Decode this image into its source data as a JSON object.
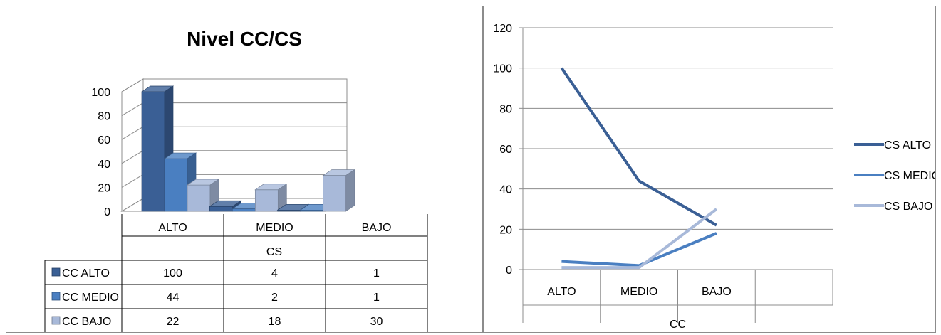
{
  "chart_data": [
    {
      "type": "bar",
      "title": "Nivel CC/CS",
      "xlabel": "CS",
      "categories": [
        "ALTO",
        "MEDIO",
        "BAJO"
      ],
      "ylim": [
        0,
        100
      ],
      "yticks": [
        "0",
        "20",
        "40",
        "60",
        "80",
        "100"
      ],
      "series": [
        {
          "name": "CC ALTO",
          "values": [
            100,
            4,
            1
          ]
        },
        {
          "name": "CC MEDIO",
          "values": [
            44,
            2,
            1
          ]
        },
        {
          "name": "CC BAJO",
          "values": [
            22,
            18,
            30
          ]
        }
      ],
      "colors": [
        "#3a5f95",
        "#4a7fc1",
        "#a8b9d9"
      ],
      "data_table": true,
      "grid": true
    },
    {
      "type": "line",
      "xlabel": "CC",
      "categories": [
        "ALTO",
        "MEDIO",
        "BAJO"
      ],
      "ylim": [
        0,
        120
      ],
      "yticks": [
        "0",
        "20",
        "40",
        "60",
        "80",
        "100",
        "120"
      ],
      "series": [
        {
          "name": "CS ALTO",
          "values": [
            100,
            44,
            22
          ]
        },
        {
          "name": "CS MEDIO",
          "values": [
            4,
            2,
            18
          ]
        },
        {
          "name": "CS BAJO",
          "values": [
            1,
            1,
            30
          ]
        }
      ],
      "colors": [
        "#3a5f95",
        "#4a7fc1",
        "#a8b9d9"
      ],
      "legend_position": "right",
      "grid": true
    }
  ]
}
